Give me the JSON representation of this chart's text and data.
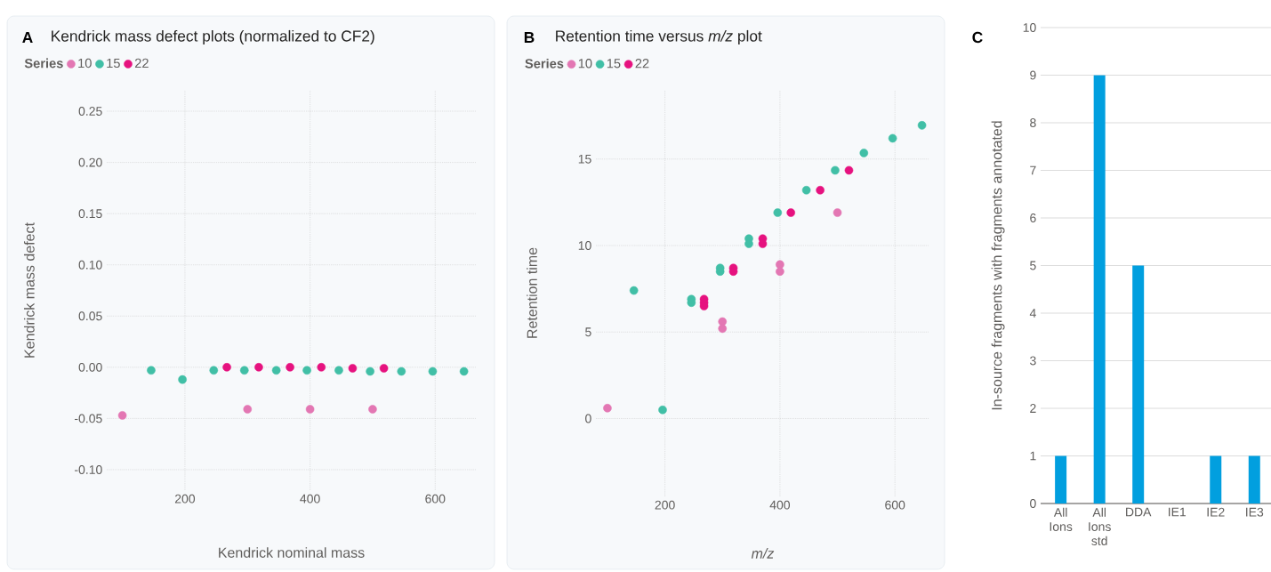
{
  "chart_data": [
    {
      "type": "scatter",
      "title": "Kendrick mass defect plots (normalized to CF2)",
      "annotations": [
        "A"
      ],
      "xlabel": "Kendrick nominal mass",
      "ylabel": "Kendrick mass defect",
      "legend_title": "Series",
      "legend": "top left",
      "marker": "circle",
      "grid": true,
      "xlim": [
        75,
        665
      ],
      "ylim": [
        -0.12,
        0.27
      ],
      "xticks": [
        200,
        400,
        600
      ],
      "yticks": [
        {
          "value": -0.1,
          "label": "-0.10"
        },
        {
          "value": -0.05,
          "label": "-0.05"
        },
        {
          "value": 0,
          "label": "0.00"
        },
        {
          "value": 0.05,
          "label": "0.05"
        },
        {
          "value": 0.1,
          "label": "0.10"
        },
        {
          "value": 0.15,
          "label": "0.15"
        },
        {
          "value": 0.2,
          "label": "0.20"
        },
        {
          "value": 0.25,
          "label": "0.25"
        }
      ],
      "series": [
        {
          "name": "10",
          "color": "#e377b3",
          "x": [
            100,
            300,
            400,
            500
          ],
          "values": [
            -0.047,
            -0.041,
            -0.041,
            -0.041
          ]
        },
        {
          "name": "15",
          "color": "#41bfa6",
          "x": [
            146,
            196,
            246,
            295,
            346,
            395,
            446,
            496,
            546,
            596,
            646
          ],
          "values": [
            -0.003,
            -0.012,
            -0.003,
            -0.003,
            -0.003,
            -0.003,
            -0.003,
            -0.004,
            -0.004,
            -0.004,
            -0.004
          ]
        },
        {
          "name": "22",
          "color": "#e6127f",
          "x": [
            267,
            318,
            368,
            418,
            468,
            518
          ],
          "values": [
            0.0,
            0.0,
            0.0,
            0.0,
            -0.001,
            -0.001
          ]
        }
      ]
    },
    {
      "type": "scatter",
      "title": "Retention time versus *m/z* plot",
      "annotations": [
        "B"
      ],
      "xlabel": "m/z",
      "ylabel": "Retention time",
      "legend_title": "Series",
      "legend": "top left",
      "marker": "circle",
      "grid": true,
      "xlim": [
        80,
        660
      ],
      "ylim": [
        -4.5,
        19
      ],
      "xticks": [
        200,
        400,
        600
      ],
      "yticks": [
        0,
        5,
        10,
        15
      ],
      "series": [
        {
          "name": "10",
          "color": "#e377b3",
          "x": [
            100,
            300,
            300,
            400,
            400,
            500
          ],
          "values": [
            0.6,
            5.6,
            5.2,
            8.9,
            8.5,
            11.9
          ]
        },
        {
          "name": "15",
          "color": "#41bfa6",
          "x": [
            146,
            196,
            246,
            246,
            296,
            296,
            346,
            346,
            396,
            446,
            496,
            546,
            596,
            647
          ],
          "values": [
            7.4,
            0.5,
            6.9,
            6.7,
            8.7,
            8.5,
            10.4,
            10.1,
            11.9,
            13.2,
            14.35,
            15.35,
            16.2,
            16.95
          ]
        },
        {
          "name": "22",
          "color": "#e6127f",
          "x": [
            268,
            268,
            268,
            319,
            319,
            370,
            370,
            419,
            470,
            520
          ],
          "values": [
            6.9,
            6.7,
            6.5,
            8.7,
            8.5,
            10.4,
            10.1,
            11.9,
            13.2,
            14.35
          ]
        }
      ]
    },
    {
      "type": "bar",
      "annotations": [
        "C"
      ],
      "ylabel": "In-source fragments with fragments annotated",
      "grid": "y",
      "categories": [
        "All Ions",
        "All Ions std",
        "DDA",
        "IE1",
        "IE2",
        "IE3"
      ],
      "values": [
        1,
        9,
        5,
        0,
        1,
        1
      ],
      "color": "#019fdf",
      "ylim": [
        0,
        10
      ],
      "yticks": [
        0,
        1,
        2,
        3,
        4,
        5,
        6,
        7,
        8,
        9,
        10
      ]
    }
  ]
}
